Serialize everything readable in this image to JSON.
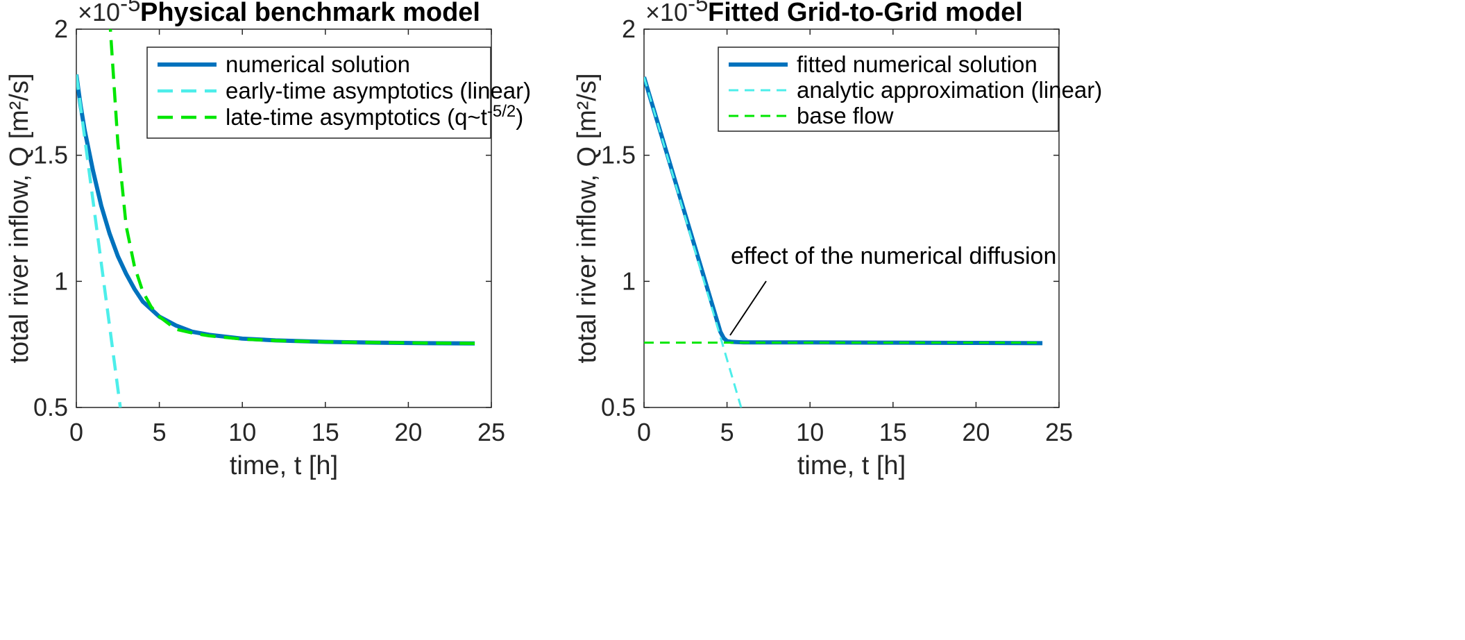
{
  "chart_data": [
    {
      "type": "line",
      "title": "Physical benchmark model",
      "xlabel": "time, t [h]",
      "ylabel": "total river inflow, Q [m²/s]",
      "y_multiplier": "×10",
      "y_multiplier_exp": "-5",
      "xlim": [
        0,
        25
      ],
      "ylim": [
        0.5,
        2
      ],
      "xticks": [
        "0",
        "5",
        "10",
        "15",
        "20",
        "25"
      ],
      "yticks": [
        "0.5",
        "1",
        "1.5",
        "2"
      ],
      "legend_position": "top-right",
      "legend": [
        "numerical solution",
        "early-time asymptotics (linear)",
        "late-time asymptotics (q~t"
      ],
      "legend_superscript": "-5/2",
      "legend_suffix": ")",
      "series": [
        {
          "name": "numerical solution",
          "color": "#0072BD",
          "style": "solid",
          "x": [
            0,
            0.25,
            0.5,
            1,
            1.5,
            2,
            2.5,
            3,
            3.5,
            4,
            5,
            6,
            7,
            8,
            10,
            12,
            15,
            18,
            21,
            24
          ],
          "y": [
            1.82,
            1.7,
            1.6,
            1.44,
            1.3,
            1.19,
            1.1,
            1.03,
            0.97,
            0.92,
            0.86,
            0.825,
            0.8,
            0.788,
            0.773,
            0.766,
            0.76,
            0.757,
            0.755,
            0.754
          ]
        },
        {
          "name": "early-time asymptotics (linear)",
          "color": "#4DEEEA",
          "style": "dashed",
          "x": [
            0,
            2.65
          ],
          "y": [
            1.82,
            0.5
          ]
        },
        {
          "name": "late-time asymptotics (q~t-5/2)",
          "color": "#00E600",
          "style": "dashed",
          "x": [
            2,
            2.5,
            3,
            3.5,
            4,
            4.5,
            5,
            6,
            7,
            8,
            10,
            12,
            15,
            20,
            24
          ],
          "y": [
            2.05,
            1.55,
            1.22,
            1.06,
            0.96,
            0.9,
            0.86,
            0.81,
            0.795,
            0.784,
            0.771,
            0.765,
            0.76,
            0.756,
            0.754
          ]
        }
      ]
    },
    {
      "type": "line",
      "title": "Fitted Grid-to-Grid model",
      "xlabel": "time, t [h]",
      "ylabel": "total river inflow, Q [m²/s]",
      "y_multiplier": "×10",
      "y_multiplier_exp": "-5",
      "xlim": [
        0,
        25
      ],
      "ylim": [
        0.5,
        2
      ],
      "xticks": [
        "0",
        "5",
        "10",
        "15",
        "20",
        "25"
      ],
      "yticks": [
        "0.5",
        "1",
        "1.5",
        "2"
      ],
      "legend_position": "top-right",
      "legend": [
        "fitted numerical solution",
        "analytic approximation (linear)",
        "base flow"
      ],
      "annotation": "effect of the numerical diffusion",
      "series": [
        {
          "name": "fitted numerical solution",
          "color": "#0072BD",
          "style": "solid",
          "x": [
            0,
            4.6,
            4.8,
            5,
            5.3,
            6,
            10,
            15,
            20,
            24
          ],
          "y": [
            1.81,
            0.8,
            0.775,
            0.763,
            0.76,
            0.758,
            0.758,
            0.757,
            0.756,
            0.755
          ]
        },
        {
          "name": "analytic approximation (linear)",
          "color": "#4DEEEA",
          "style": "dashed",
          "x": [
            0,
            5.85
          ],
          "y": [
            1.81,
            0.5
          ]
        },
        {
          "name": "base flow",
          "color": "#00E600",
          "style": "dashed",
          "x": [
            0,
            24
          ],
          "y": [
            0.757,
            0.757
          ]
        }
      ]
    }
  ]
}
